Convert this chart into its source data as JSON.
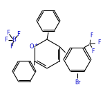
{
  "bg_color": "#ffffff",
  "bond_color": "#000000",
  "O_color": "#0000cc",
  "Br_color": "#0000cc",
  "F_color": "#0000cc",
  "B_color": "#0000cc",
  "lw": 0.8,
  "dbo": 0.018,
  "figsize": [
    1.52,
    1.52
  ],
  "dpi": 100,
  "xlim": [
    0,
    152
  ],
  "ylim": [
    0,
    152
  ]
}
